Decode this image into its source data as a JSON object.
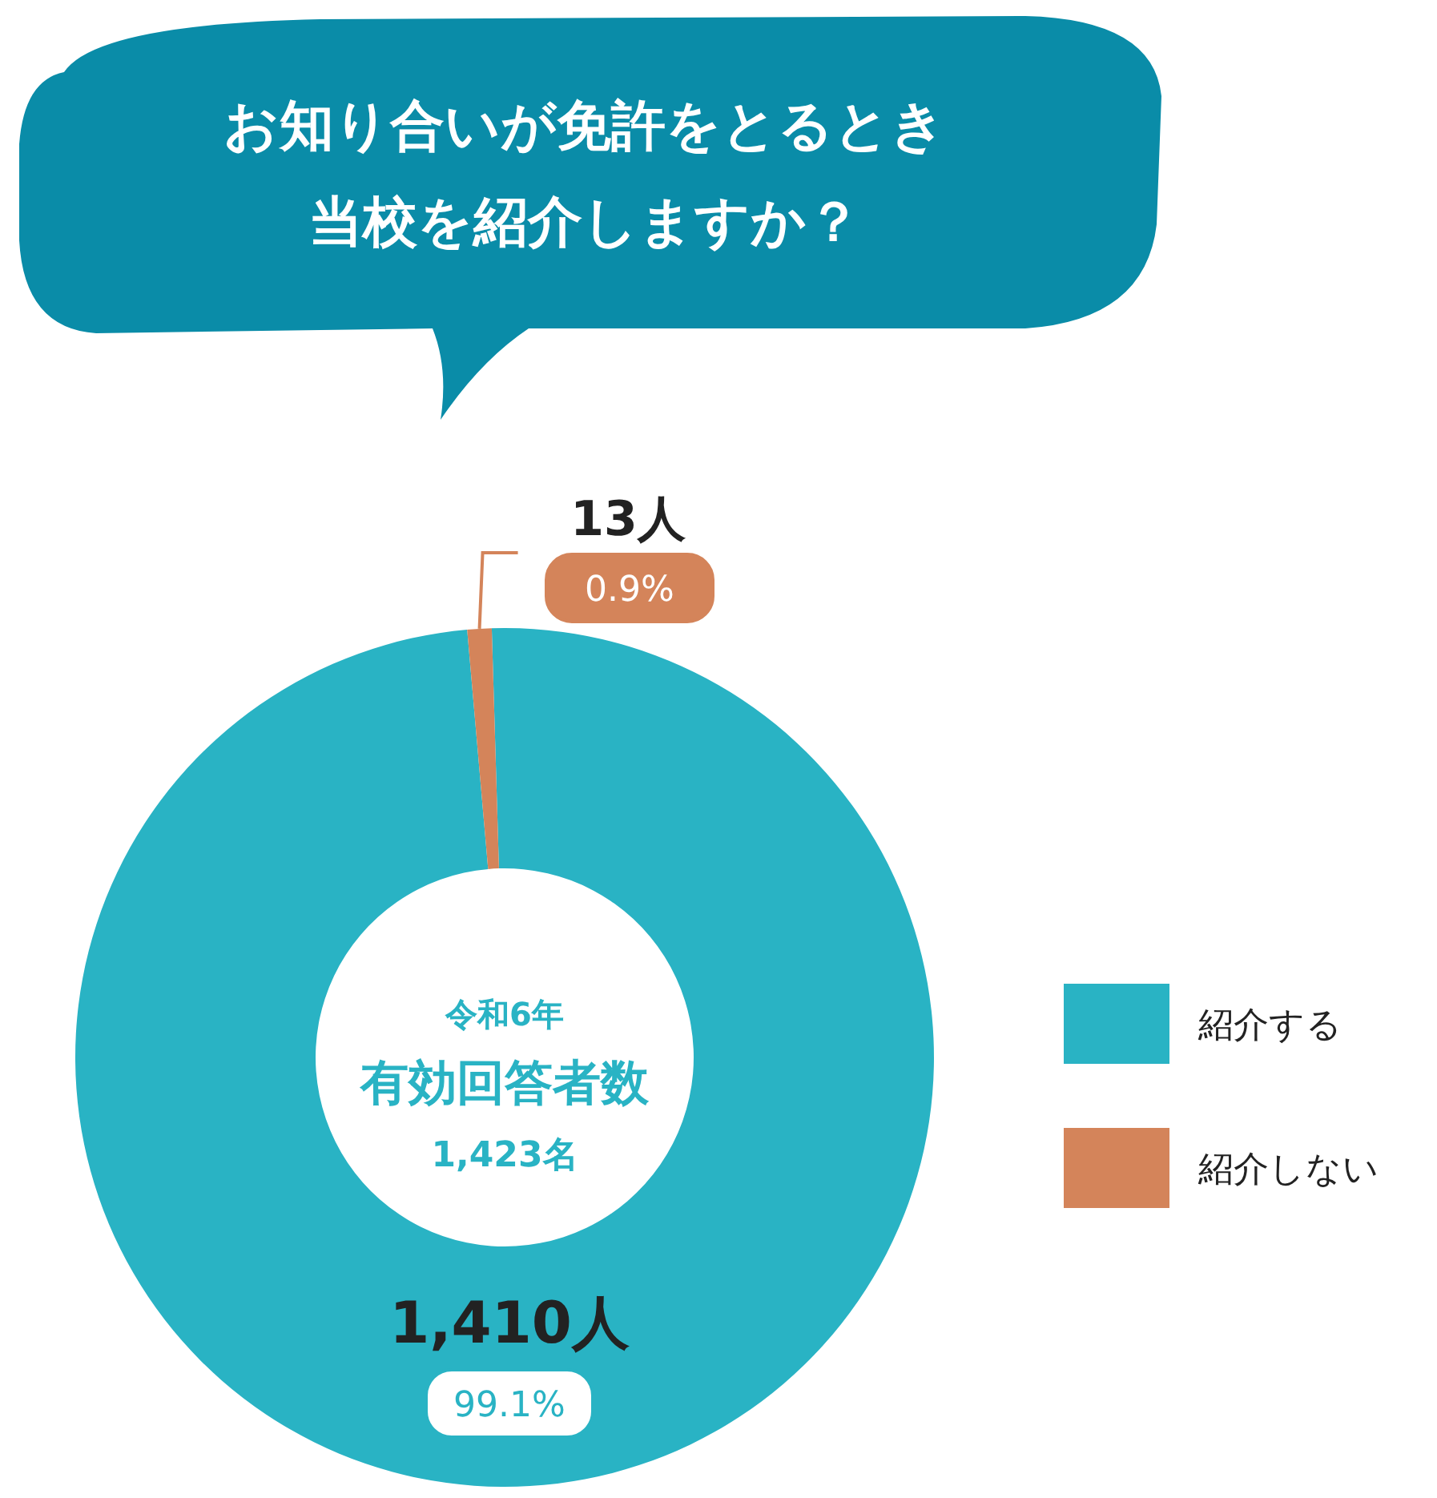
{
  "chart_data": {
    "type": "donut",
    "title": "お知り合いが免許をとるとき",
    "subtitle": "当校を紹介しますか？",
    "categories": [
      "紹介する",
      "紹介しない"
    ],
    "values": [
      1410,
      13
    ],
    "colors": [
      "#29b3c4",
      "#d4845a"
    ],
    "value_labels": [
      "1,410人",
      "13人"
    ],
    "annotations": [
      "99.1%",
      "0.9%",
      "令和6年",
      "有効回答者数",
      "1,423名"
    ],
    "legend": "right"
  }
}
